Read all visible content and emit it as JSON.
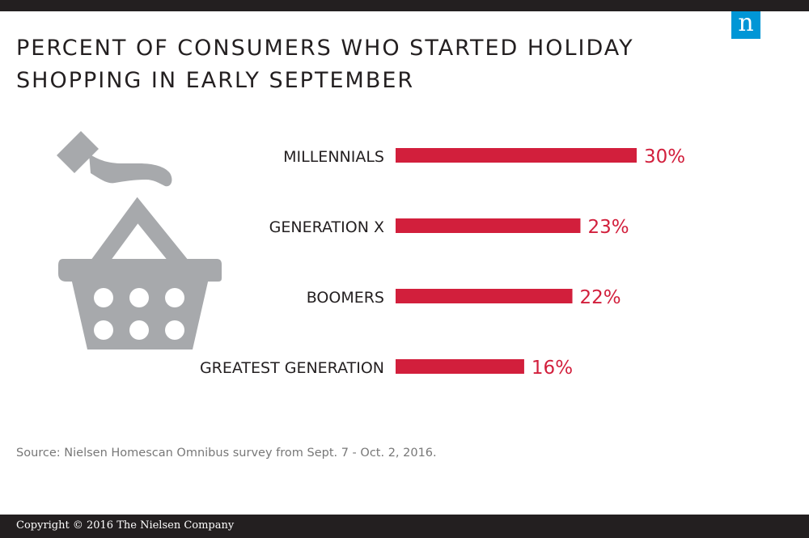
{
  "header": {
    "title": "PERCENT OF CONSUMERS WHO STARTED HOLIDAY SHOPPING IN EARLY SEPTEMBER",
    "logo_text": "n",
    "logo_color": "#0096d6"
  },
  "illustration": {
    "icon": "shopping-basket-with-hand-icon",
    "color": "#a7a9ac"
  },
  "chart_data": {
    "type": "bar",
    "orientation": "horizontal",
    "title": "PERCENT OF CONSUMERS WHO STARTED HOLIDAY SHOPPING IN EARLY SEPTEMBER",
    "categories": [
      "MILLENNIALS",
      "GENERATION X",
      "BOOMERS",
      "GREATEST GENERATION"
    ],
    "values": [
      30,
      23,
      22,
      16
    ],
    "value_labels": [
      "30%",
      "23%",
      "22%",
      "16%"
    ],
    "unit": "%",
    "xlim": [
      0,
      30
    ],
    "grid": false,
    "legend": "none",
    "bar_color": "#d21f3c"
  },
  "source": "Source: Nielsen Homescan Omnibus survey from Sept. 7 - Oct. 2, 2016.",
  "footer": {
    "copyright": "Copyright © 2016 The Nielsen Company"
  }
}
